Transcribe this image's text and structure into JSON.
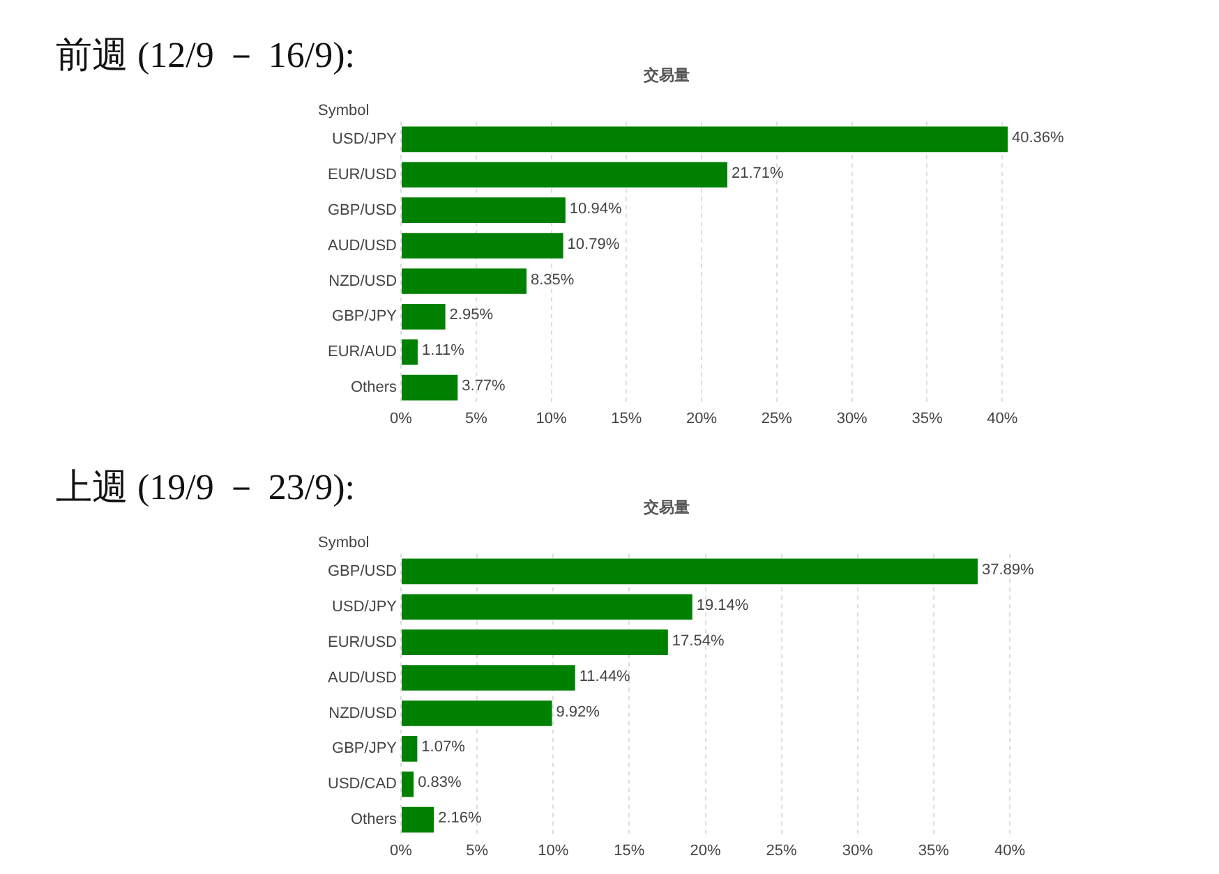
{
  "chart_data": [
    {
      "type": "bar",
      "orientation": "horizontal",
      "title": "前週 (12/9 － 16/9):",
      "subtitle": "交易量",
      "ylabel": "Symbol",
      "categories": [
        "USD/JPY",
        "EUR/USD",
        "GBP/USD",
        "AUD/USD",
        "NZD/USD",
        "GBP/JPY",
        "EUR/AUD",
        "Others"
      ],
      "values": [
        40.36,
        21.71,
        10.94,
        10.79,
        8.35,
        2.95,
        1.11,
        3.77
      ],
      "color": "#008000",
      "value_labels": [
        "40.36%",
        "21.71%",
        "10.94%",
        "10.79%",
        "8.35%",
        "2.95%",
        "1.11%",
        "3.77%"
      ],
      "xlim": [
        0,
        40.5
      ],
      "xticks": [
        {
          "value": 0,
          "label": "0%"
        },
        {
          "value": 5,
          "label": "5%"
        },
        {
          "value": 10,
          "label": "10%"
        },
        {
          "value": 15,
          "label": "15%"
        },
        {
          "value": 20,
          "label": "20%"
        },
        {
          "value": 25,
          "label": "25%"
        },
        {
          "value": 30,
          "label": "30%"
        },
        {
          "value": 35,
          "label": "35%"
        },
        {
          "value": 40,
          "label": "40%"
        }
      ],
      "grid": "x",
      "legend": false
    },
    {
      "type": "bar",
      "orientation": "horizontal",
      "title": "上週 (19/9 － 23/9):",
      "subtitle": "交易量",
      "ylabel": "Symbol",
      "categories": [
        "GBP/USD",
        "USD/JPY",
        "EUR/USD",
        "AUD/USD",
        "NZD/USD",
        "GBP/JPY",
        "USD/CAD",
        "Others"
      ],
      "values": [
        37.89,
        19.14,
        17.54,
        11.44,
        9.92,
        1.07,
        0.83,
        2.16
      ],
      "color": "#008000",
      "value_labels": [
        "37.89%",
        "19.14%",
        "17.54%",
        "11.44%",
        "9.92%",
        "1.07%",
        "0.83%",
        "2.16%"
      ],
      "xlim": [
        0,
        40
      ],
      "xticks": [
        {
          "value": 0,
          "label": "0%"
        },
        {
          "value": 5,
          "label": "5%"
        },
        {
          "value": 10,
          "label": "10%"
        },
        {
          "value": 15,
          "label": "15%"
        },
        {
          "value": 20,
          "label": "20%"
        },
        {
          "value": 25,
          "label": "25%"
        },
        {
          "value": 30,
          "label": "30%"
        },
        {
          "value": 35,
          "label": "35%"
        },
        {
          "value": 40,
          "label": "40%"
        }
      ],
      "grid": "x",
      "legend": false
    }
  ]
}
